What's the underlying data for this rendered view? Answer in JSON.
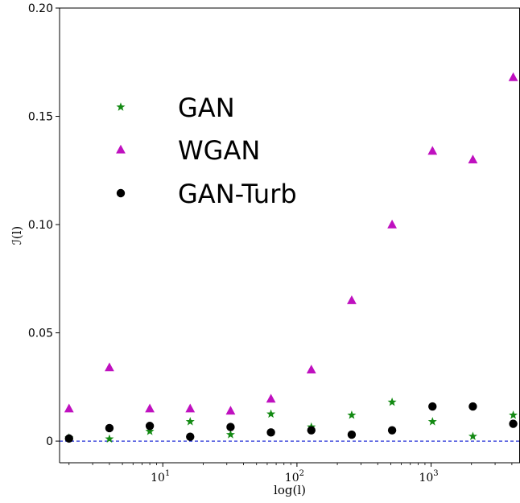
{
  "chart_data": {
    "type": "scatter",
    "xscale": "log",
    "xlabel": "log(l)",
    "ylabel": "ℐ(l)",
    "xlim": [
      1.7,
      4600
    ],
    "ylim": [
      -0.01,
      0.2
    ],
    "yticks": [
      {
        "value": 0,
        "label": "0"
      },
      {
        "value": 0.05,
        "label": "0.05"
      },
      {
        "value": 0.1,
        "label": "0.10"
      },
      {
        "value": 0.15,
        "label": "0.15"
      },
      {
        "value": 0.2,
        "label": "0.20"
      }
    ],
    "xticks": [
      {
        "value": 10,
        "base": "10",
        "exp": "1"
      },
      {
        "value": 100,
        "base": "10",
        "exp": "2"
      },
      {
        "value": 1000,
        "base": "10",
        "exp": "3"
      }
    ],
    "reference_line": {
      "y": 0,
      "color": "#1f2bd6",
      "style": "dashed"
    },
    "legend_position": "upper-left",
    "series": [
      {
        "name": "GAN",
        "marker": "star",
        "color": "#138a13",
        "x": [
          2,
          4,
          8,
          16,
          32,
          64,
          128,
          256,
          512,
          1024,
          2048,
          4096
        ],
        "y": [
          0.0015,
          0.001,
          0.0045,
          0.009,
          0.003,
          0.0125,
          0.0065,
          0.012,
          0.018,
          0.009,
          0.0022,
          0.012
        ]
      },
      {
        "name": "WGAN",
        "marker": "triangle",
        "color": "#bf10bf",
        "x": [
          2,
          4,
          8,
          16,
          32,
          64,
          128,
          256,
          512,
          1024,
          2048,
          4096
        ],
        "y": [
          0.015,
          0.034,
          0.015,
          0.015,
          0.014,
          0.0195,
          0.033,
          0.065,
          0.1,
          0.134,
          0.13,
          0.168
        ]
      },
      {
        "name": "GAN-Turb",
        "marker": "circle",
        "color": "#000000",
        "x": [
          2,
          4,
          8,
          16,
          32,
          64,
          128,
          256,
          512,
          1024,
          2048,
          4096
        ],
        "y": [
          0.0012,
          0.006,
          0.007,
          0.002,
          0.0065,
          0.004,
          0.005,
          0.003,
          0.005,
          0.016,
          0.016,
          0.008
        ]
      }
    ]
  }
}
